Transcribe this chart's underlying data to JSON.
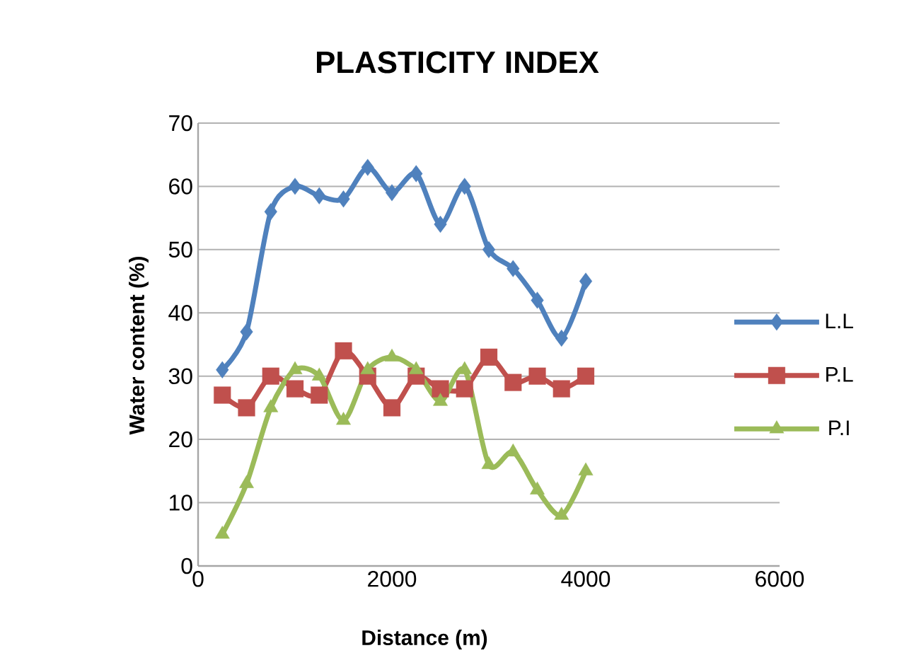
{
  "chart_data": {
    "type": "line",
    "title": "PLASTICITY INDEX",
    "xlabel": "Distance (m)",
    "ylabel": "Water content (%)",
    "x": [
      250,
      500,
      750,
      1000,
      1250,
      1500,
      1750,
      2000,
      2250,
      2500,
      2750,
      3000,
      3250,
      3500,
      3750,
      4000
    ],
    "series": [
      {
        "name": "L.L",
        "color": "#4f81bd",
        "marker": "diamond",
        "values": [
          31,
          37,
          56,
          60,
          58.5,
          58,
          63,
          59,
          62,
          54,
          60,
          50,
          47,
          42,
          36,
          45
        ]
      },
      {
        "name": "P.L",
        "color": "#c0504d",
        "marker": "square",
        "values": [
          27,
          25,
          30,
          28,
          27,
          34,
          30,
          25,
          30,
          28,
          28,
          33,
          29,
          30,
          28,
          30
        ]
      },
      {
        "name": "P.I",
        "color": "#9bbb59",
        "marker": "triangle",
        "values": [
          5,
          13,
          25,
          31,
          30,
          23,
          31,
          33,
          31,
          26,
          31,
          16,
          18,
          12,
          8,
          15
        ]
      }
    ],
    "xlim": [
      0,
      6000
    ],
    "xticks": [
      0,
      2000,
      4000,
      6000
    ],
    "ylim": [
      0,
      70
    ],
    "yticks": [
      0,
      10,
      20,
      30,
      40,
      50,
      60,
      70
    ],
    "grid": "y",
    "legend": "right",
    "line_style": "solid"
  }
}
